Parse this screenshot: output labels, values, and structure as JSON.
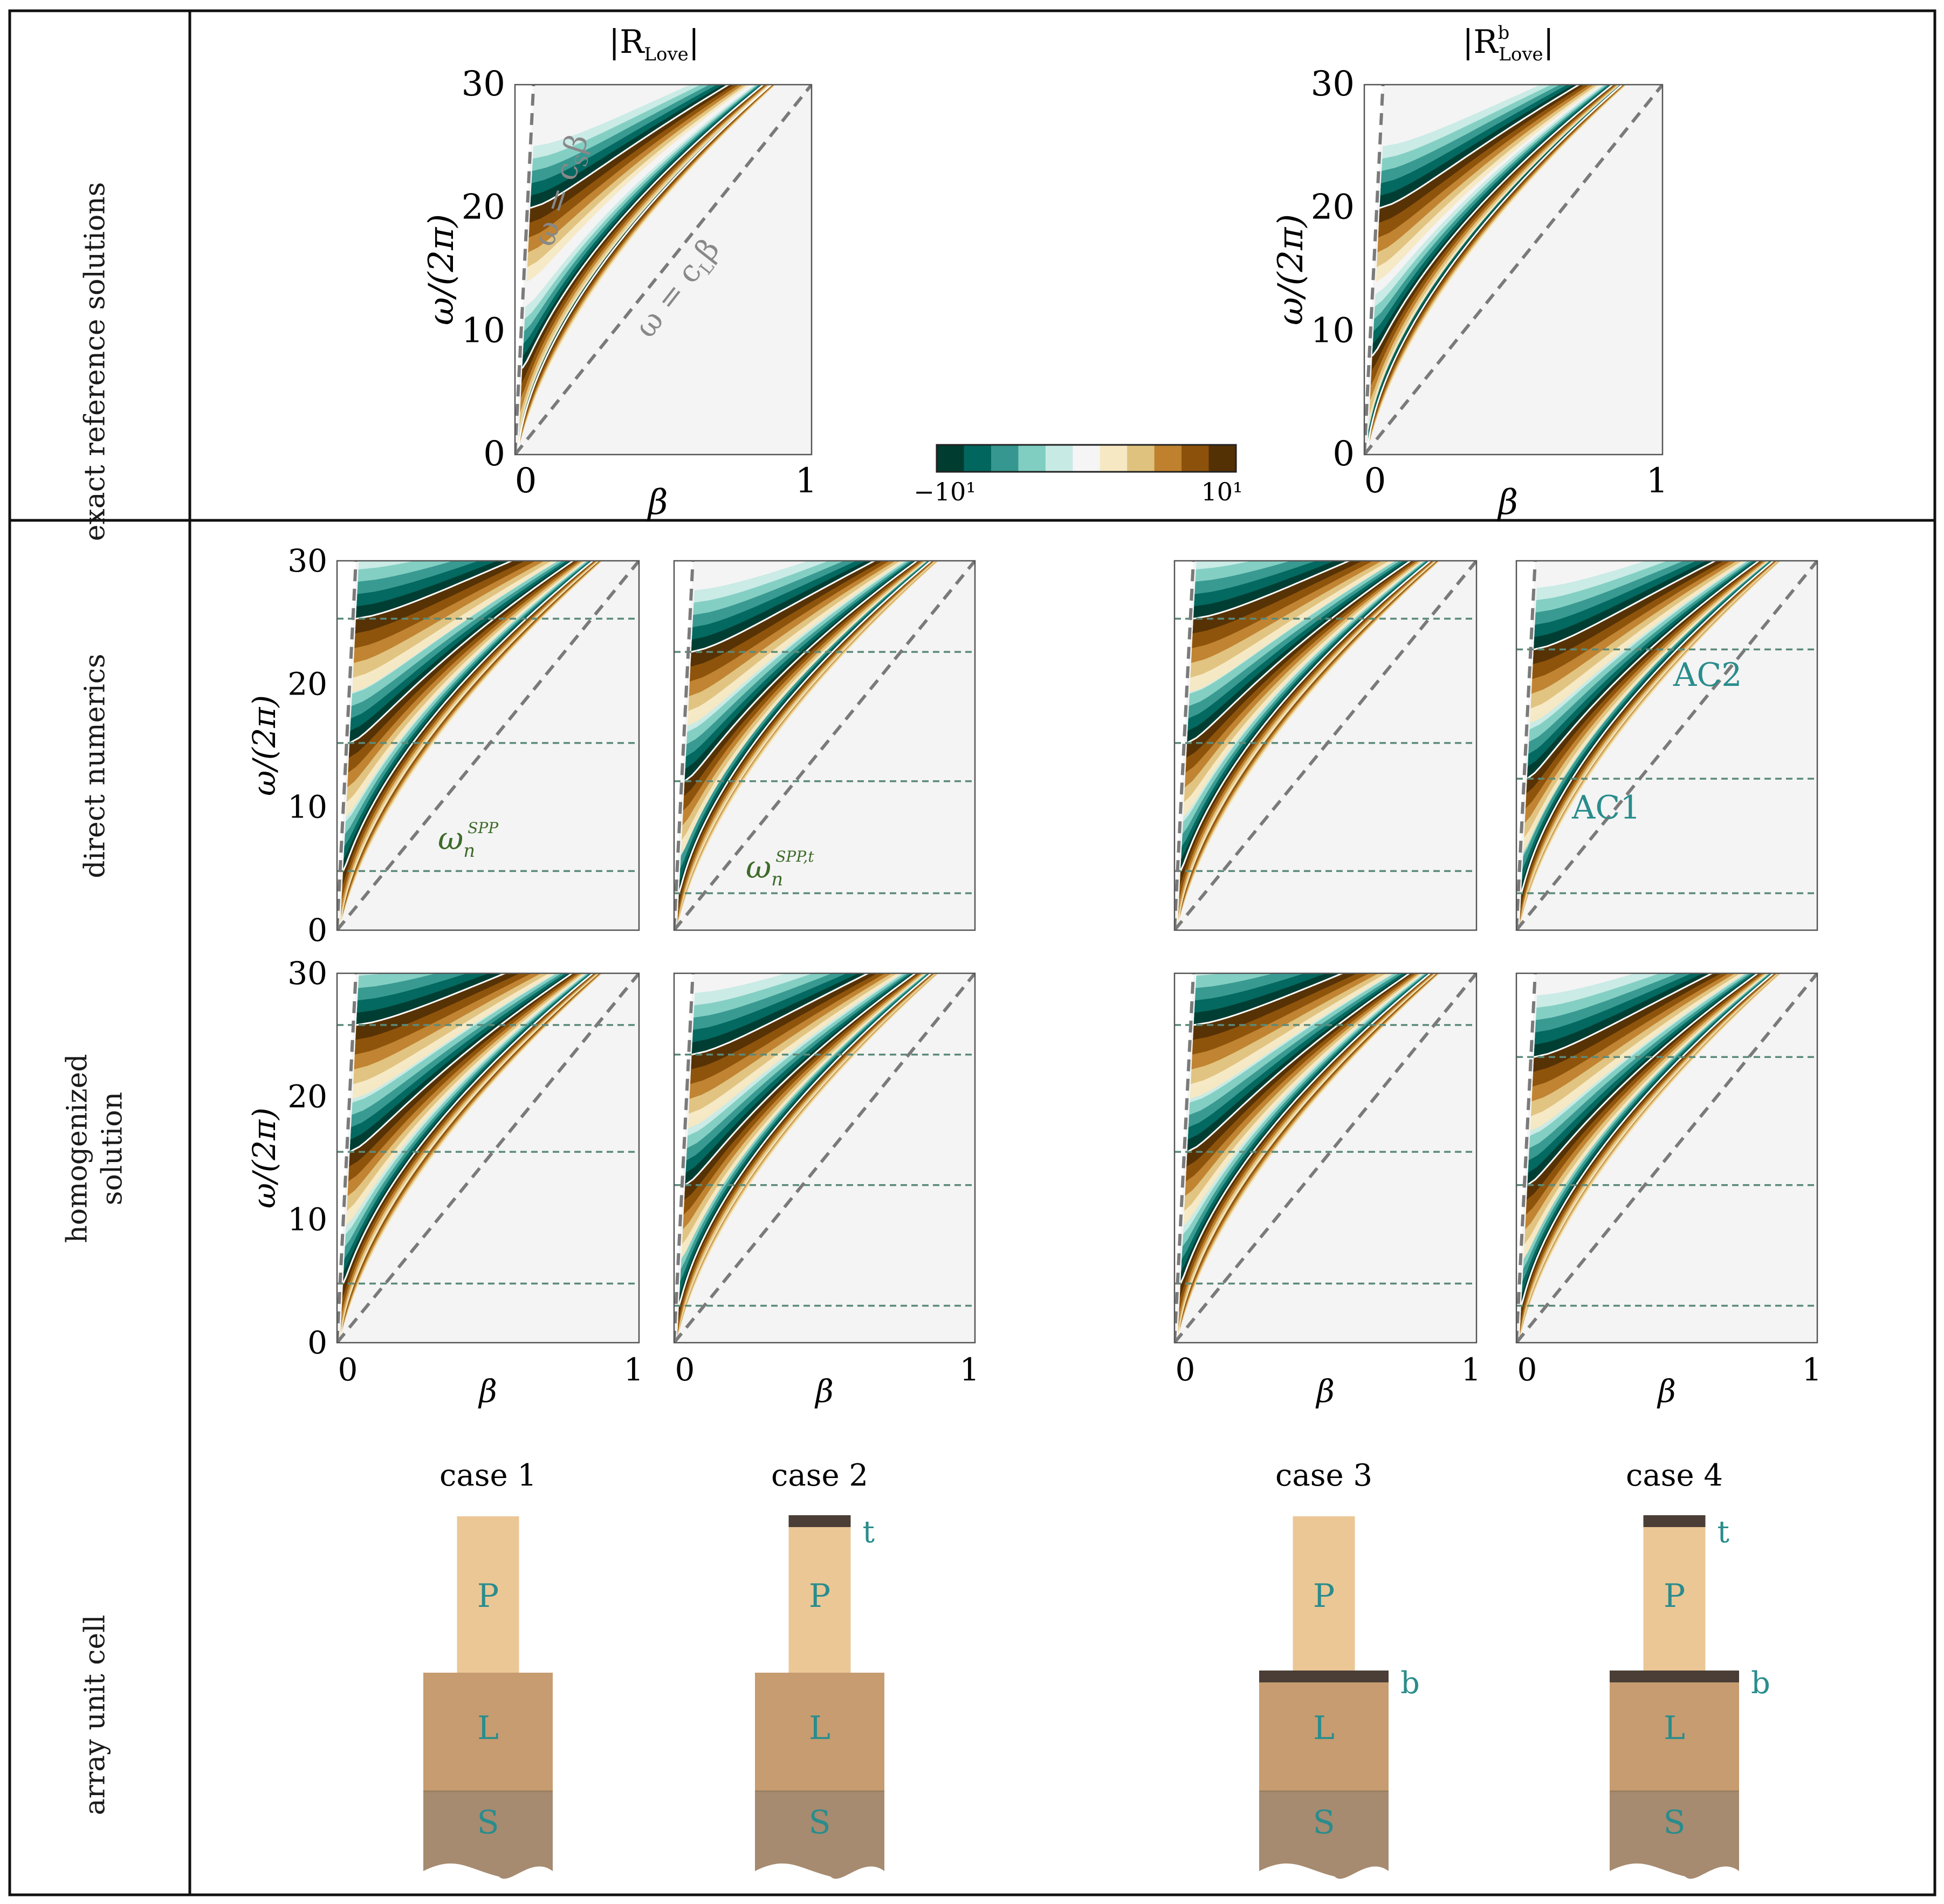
{
  "row_labels": {
    "exact": "exact reference solutions",
    "direct": "direct numerics",
    "homogenized_line1": "homogenized",
    "homogenized_line2": "solution",
    "cell": "array unit cell"
  },
  "colorbar": {
    "min_label": "−10¹",
    "max_label": "10¹",
    "colors": [
      "#003c30",
      "#01665e",
      "#35978f",
      "#80cdc1",
      "#c7eae5",
      "#f5f5f5",
      "#f6e8c3",
      "#dfc27d",
      "#bf812d",
      "#8c510a",
      "#543005"
    ]
  },
  "colors": {
    "background": "#f4f4f4",
    "dashed_line": "#7a7a7a",
    "resonance_line": "#5b8a7a",
    "annotation": "#2a8c8c",
    "label_green": "#3d6b2a",
    "post": "#ebc796",
    "layer": "#c69c70",
    "substrate": "#a68b70",
    "cap": "#4a3e36"
  },
  "chart_data": [
    {
      "id": "exact-rlove",
      "type": "heatmap",
      "title": "|R_Love|",
      "xlabel": "β",
      "ylabel": "ω/(2π)",
      "xlim": [
        0,
        1
      ],
      "ylim": [
        0,
        30
      ],
      "xticks": [
        "0",
        "1"
      ],
      "yticks": [
        "0",
        "10",
        "20",
        "30"
      ],
      "light_lines": [
        {
          "label": "ω = c_Sβ",
          "slope": 480
        },
        {
          "label": "ω = c_Lβ",
          "slope": 30
        }
      ],
      "branch_onsets": [
        7,
        20
      ],
      "resonances": []
    },
    {
      "id": "exact-rlove-b",
      "type": "heatmap",
      "title": "|R^b_Love|",
      "xlabel": "β",
      "ylabel": "ω/(2π)",
      "xlim": [
        0,
        1
      ],
      "ylim": [
        0,
        30
      ],
      "xticks": [
        "0",
        "1"
      ],
      "yticks": [
        "0",
        "10",
        "20",
        "30"
      ],
      "light_lines": [
        {
          "slope": 480
        },
        {
          "slope": 30
        }
      ],
      "branch_onsets": [
        8,
        20
      ],
      "resonances": []
    },
    {
      "id": "direct-case1",
      "type": "heatmap",
      "case": "case 1",
      "xlim": [
        0,
        1
      ],
      "ylim": [
        0,
        30
      ],
      "light_lines": [
        {
          "slope": 480
        },
        {
          "slope": 30
        }
      ],
      "resonances": [
        4.8,
        15.2,
        25.3
      ],
      "annotation": "ω_n^SPP"
    },
    {
      "id": "direct-case2",
      "type": "heatmap",
      "case": "case 2",
      "xlim": [
        0,
        1
      ],
      "ylim": [
        0,
        30
      ],
      "light_lines": [
        {
          "slope": 480
        },
        {
          "slope": 30
        }
      ],
      "resonances": [
        3.0,
        12.1,
        22.6
      ],
      "annotation": "ω_n^SPP,t"
    },
    {
      "id": "direct-case3",
      "type": "heatmap",
      "case": "case 3",
      "xlim": [
        0,
        1
      ],
      "ylim": [
        0,
        30
      ],
      "light_lines": [
        {
          "slope": 480
        },
        {
          "slope": 30
        }
      ],
      "resonances": [
        4.8,
        15.2,
        25.3
      ]
    },
    {
      "id": "direct-case4",
      "type": "heatmap",
      "case": "case 4",
      "xlim": [
        0,
        1
      ],
      "ylim": [
        0,
        30
      ],
      "light_lines": [
        {
          "slope": 480
        },
        {
          "slope": 30
        }
      ],
      "resonances": [
        3.0,
        12.3,
        22.8
      ],
      "annotations": [
        "AC1",
        "AC2"
      ]
    },
    {
      "id": "homog-case1",
      "type": "heatmap",
      "case": "case 1",
      "xlim": [
        0,
        1
      ],
      "ylim": [
        0,
        30
      ],
      "light_lines": [
        {
          "slope": 480
        },
        {
          "slope": 30
        }
      ],
      "resonances": [
        4.8,
        15.5,
        25.8
      ]
    },
    {
      "id": "homog-case2",
      "type": "heatmap",
      "case": "case 2",
      "xlim": [
        0,
        1
      ],
      "ylim": [
        0,
        30
      ],
      "light_lines": [
        {
          "slope": 480
        },
        {
          "slope": 30
        }
      ],
      "resonances": [
        3.0,
        12.8,
        23.4
      ]
    },
    {
      "id": "homog-case3",
      "type": "heatmap",
      "case": "case 3",
      "xlim": [
        0,
        1
      ],
      "ylim": [
        0,
        30
      ],
      "light_lines": [
        {
          "slope": 480
        },
        {
          "slope": 30
        }
      ],
      "resonances": [
        4.8,
        15.5,
        25.8
      ]
    },
    {
      "id": "homog-case4",
      "type": "heatmap",
      "case": "case 4",
      "xlim": [
        0,
        1
      ],
      "ylim": [
        0,
        30
      ],
      "light_lines": [
        {
          "slope": 480
        },
        {
          "slope": 30
        }
      ],
      "resonances": [
        3.0,
        12.8,
        23.2
      ]
    }
  ],
  "exact_titles": {
    "left": "|R",
    "left_sub": "Love",
    "left_end": "|",
    "right": "|R",
    "right_sup": "b",
    "right_sub": "Love",
    "right_end": "|"
  },
  "exact_annotations": {
    "shear": "ω = c",
    "shear_sub": "S",
    "shear_end": "β",
    "long": "ω = c",
    "long_sub": "L",
    "long_end": "β"
  },
  "axis": {
    "ylabel_start": "ω/(2π)",
    "xlabel": "β",
    "xtick0": "0",
    "xtick1": "1",
    "ytick0": "0",
    "ytick10": "10",
    "ytick20": "20",
    "ytick30": "30"
  },
  "spp_labels": {
    "c1": "ω",
    "c1_sub": "n",
    "c1_sup": "SPP",
    "c2": "ω",
    "c2_sub": "n",
    "c2_sup": "SPP,t",
    "ac1": "AC1",
    "ac2": "AC2"
  },
  "unit_cells": [
    {
      "case": "case 1",
      "layers": [
        "P",
        "L",
        "S"
      ],
      "top_film": "",
      "base_film": ""
    },
    {
      "case": "case 2",
      "layers": [
        "P",
        "L",
        "S"
      ],
      "top_film": "t",
      "base_film": ""
    },
    {
      "case": "case 3",
      "layers": [
        "P",
        "L",
        "S"
      ],
      "top_film": "",
      "base_film": "b"
    },
    {
      "case": "case 4",
      "layers": [
        "P",
        "L",
        "S"
      ],
      "top_film": "t",
      "base_film": "b"
    }
  ]
}
